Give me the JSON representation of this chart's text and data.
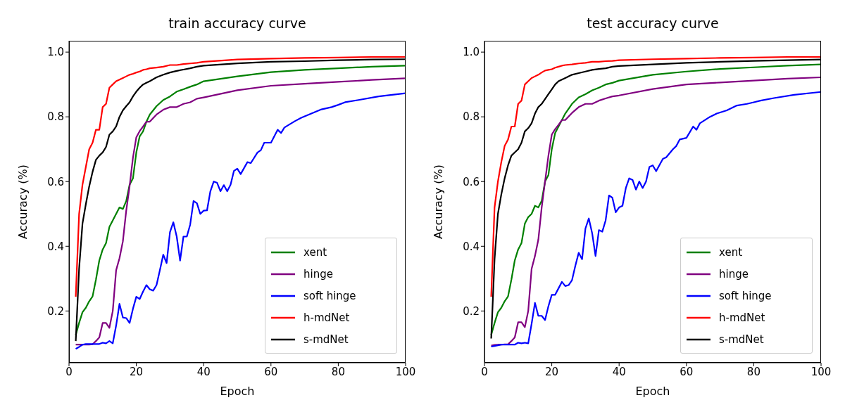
{
  "chart_data": [
    {
      "type": "line",
      "title": "train accuracy curve",
      "xlabel": "Epoch",
      "ylabel": "Accuracy (%)",
      "x": [
        2,
        3,
        4,
        5,
        6,
        7,
        8,
        9,
        10,
        11,
        12,
        13,
        14,
        15,
        16,
        17,
        18,
        19,
        20,
        21,
        22,
        23,
        24,
        26,
        28,
        30,
        32,
        34,
        36,
        38,
        40,
        50,
        60,
        70,
        80,
        90,
        100
      ],
      "series": [
        {
          "name": "xent",
          "color": "#008000",
          "values": [
            0.126,
            0.163,
            0.196,
            0.21,
            0.23,
            0.245,
            0.297,
            0.356,
            0.39,
            0.41,
            0.46,
            0.48,
            0.5,
            0.52,
            0.515,
            0.54,
            0.59,
            0.61,
            0.69,
            0.74,
            0.755,
            0.785,
            0.807,
            0.833,
            0.852,
            0.863,
            0.878,
            0.885,
            0.893,
            0.9,
            0.91,
            0.925,
            0.938,
            0.945,
            0.95,
            0.955,
            0.958
          ]
        },
        {
          "name": "hinge",
          "color": "#800080",
          "values": [
            0.096,
            0.096,
            0.096,
            0.096,
            0.096,
            0.097,
            0.107,
            0.118,
            0.163,
            0.163,
            0.148,
            0.2,
            0.326,
            0.363,
            0.415,
            0.51,
            0.585,
            0.674,
            0.737,
            0.756,
            0.77,
            0.785,
            0.785,
            0.807,
            0.822,
            0.83,
            0.83,
            0.84,
            0.845,
            0.856,
            0.86,
            0.882,
            0.896,
            0.902,
            0.908,
            0.914,
            0.919
          ]
        },
        {
          "name": "soft hinge",
          "color": "#0000ff",
          "x": [
            2,
            3,
            4,
            5,
            6,
            7,
            8,
            9,
            10,
            11,
            12,
            13,
            14,
            15,
            16,
            17,
            18,
            19,
            20,
            21,
            22,
            23,
            24,
            25,
            26,
            27,
            28,
            29,
            30,
            31,
            32,
            33,
            34,
            35,
            36,
            37,
            38,
            39,
            40,
            41,
            42,
            43,
            44,
            45,
            46,
            47,
            48,
            49,
            50,
            51,
            53,
            54,
            56,
            57,
            58,
            60,
            62,
            63,
            64,
            67,
            69,
            72,
            75,
            78,
            80,
            82,
            86,
            92,
            100
          ],
          "values": [
            0.083,
            0.089,
            0.096,
            0.098,
            0.098,
            0.098,
            0.098,
            0.098,
            0.102,
            0.1,
            0.107,
            0.1,
            0.155,
            0.222,
            0.18,
            0.178,
            0.163,
            0.207,
            0.244,
            0.237,
            0.26,
            0.28,
            0.267,
            0.263,
            0.28,
            0.326,
            0.374,
            0.348,
            0.444,
            0.474,
            0.43,
            0.356,
            0.43,
            0.43,
            0.467,
            0.54,
            0.533,
            0.5,
            0.51,
            0.511,
            0.57,
            0.6,
            0.596,
            0.57,
            0.589,
            0.57,
            0.59,
            0.633,
            0.64,
            0.623,
            0.66,
            0.657,
            0.69,
            0.697,
            0.72,
            0.72,
            0.76,
            0.75,
            0.767,
            0.786,
            0.797,
            0.81,
            0.823,
            0.83,
            0.837,
            0.845,
            0.852,
            0.863,
            0.873
          ]
        },
        {
          "name": "h-mdNet",
          "color": "#ff0000",
          "values": [
            0.244,
            0.5,
            0.59,
            0.645,
            0.7,
            0.72,
            0.76,
            0.76,
            0.83,
            0.84,
            0.89,
            0.9,
            0.91,
            0.915,
            0.92,
            0.925,
            0.93,
            0.933,
            0.937,
            0.94,
            0.945,
            0.947,
            0.95,
            0.952,
            0.955,
            0.96,
            0.96,
            0.963,
            0.965,
            0.967,
            0.97,
            0.977,
            0.98,
            0.982,
            0.983,
            0.985,
            0.985
          ]
        },
        {
          "name": "s-mdNet",
          "color": "#000000",
          "values": [
            0.107,
            0.33,
            0.47,
            0.53,
            0.585,
            0.63,
            0.667,
            0.68,
            0.69,
            0.707,
            0.745,
            0.755,
            0.77,
            0.8,
            0.82,
            0.833,
            0.845,
            0.863,
            0.878,
            0.89,
            0.9,
            0.905,
            0.91,
            0.922,
            0.93,
            0.937,
            0.942,
            0.946,
            0.95,
            0.955,
            0.958,
            0.965,
            0.97,
            0.972,
            0.975,
            0.977,
            0.978
          ]
        }
      ],
      "xlim": [
        0,
        100
      ],
      "xticks": [
        0,
        20,
        40,
        60,
        80,
        100
      ],
      "ylim": [
        0.04,
        1.035
      ],
      "yticks": [
        0.2,
        0.4,
        0.6,
        0.8,
        {
          "value": 1,
          "label": "1.0"
        }
      ],
      "legend": "bottom right",
      "marker": "none",
      "line_style": "solid"
    },
    {
      "type": "line",
      "title": "test accuracy curve",
      "xlabel": "Epoch",
      "ylabel": "Accuracy (%)",
      "x": [
        2,
        3,
        4,
        5,
        6,
        7,
        8,
        9,
        10,
        11,
        12,
        13,
        14,
        15,
        16,
        17,
        18,
        19,
        20,
        21,
        22,
        23,
        24,
        26,
        28,
        30,
        32,
        34,
        36,
        38,
        40,
        50,
        60,
        70,
        80,
        90,
        100
      ],
      "series": [
        {
          "name": "xent",
          "color": "#008000",
          "values": [
            0.126,
            0.163,
            0.196,
            0.21,
            0.23,
            0.245,
            0.297,
            0.356,
            0.39,
            0.41,
            0.47,
            0.49,
            0.5,
            0.525,
            0.52,
            0.54,
            0.6,
            0.62,
            0.7,
            0.75,
            0.77,
            0.79,
            0.81,
            0.84,
            0.86,
            0.87,
            0.882,
            0.89,
            0.9,
            0.905,
            0.912,
            0.93,
            0.94,
            0.948,
            0.953,
            0.958,
            0.962
          ]
        },
        {
          "name": "hinge",
          "color": "#800080",
          "values": [
            0.093,
            0.095,
            0.096,
            0.096,
            0.097,
            0.097,
            0.107,
            0.118,
            0.165,
            0.165,
            0.15,
            0.2,
            0.33,
            0.37,
            0.42,
            0.52,
            0.6,
            0.68,
            0.745,
            0.762,
            0.775,
            0.79,
            0.79,
            0.812,
            0.83,
            0.84,
            0.84,
            0.85,
            0.857,
            0.863,
            0.866,
            0.886,
            0.9,
            0.906,
            0.912,
            0.918,
            0.922
          ]
        },
        {
          "name": "soft hinge",
          "color": "#0000ff",
          "x": [
            2,
            3,
            4,
            5,
            6,
            7,
            8,
            9,
            10,
            11,
            12,
            13,
            14,
            15,
            16,
            17,
            18,
            19,
            20,
            21,
            22,
            23,
            24,
            25,
            26,
            27,
            28,
            29,
            30,
            31,
            32,
            33,
            34,
            35,
            36,
            37,
            38,
            39,
            40,
            41,
            42,
            43,
            44,
            45,
            46,
            47,
            48,
            49,
            50,
            51,
            53,
            54,
            56,
            57,
            58,
            60,
            62,
            63,
            64,
            67,
            69,
            72,
            75,
            78,
            80,
            82,
            86,
            92,
            100
          ],
          "values": [
            0.09,
            0.092,
            0.094,
            0.096,
            0.096,
            0.096,
            0.096,
            0.096,
            0.102,
            0.1,
            0.102,
            0.1,
            0.16,
            0.225,
            0.185,
            0.185,
            0.172,
            0.215,
            0.25,
            0.25,
            0.27,
            0.29,
            0.277,
            0.28,
            0.295,
            0.34,
            0.38,
            0.36,
            0.455,
            0.486,
            0.44,
            0.37,
            0.45,
            0.445,
            0.48,
            0.557,
            0.55,
            0.505,
            0.52,
            0.525,
            0.58,
            0.61,
            0.605,
            0.575,
            0.6,
            0.58,
            0.6,
            0.645,
            0.65,
            0.632,
            0.67,
            0.675,
            0.7,
            0.71,
            0.73,
            0.735,
            0.77,
            0.76,
            0.78,
            0.8,
            0.81,
            0.82,
            0.835,
            0.84,
            0.845,
            0.85,
            0.858,
            0.868,
            0.877
          ]
        },
        {
          "name": "h-mdNet",
          "color": "#ff0000",
          "values": [
            0.244,
            0.52,
            0.6,
            0.66,
            0.71,
            0.73,
            0.77,
            0.77,
            0.84,
            0.85,
            0.9,
            0.91,
            0.92,
            0.925,
            0.93,
            0.937,
            0.943,
            0.945,
            0.947,
            0.952,
            0.955,
            0.958,
            0.96,
            0.962,
            0.965,
            0.967,
            0.97,
            0.97,
            0.972,
            0.973,
            0.975,
            0.978,
            0.98,
            0.982,
            0.983,
            0.985,
            0.985
          ]
        },
        {
          "name": "s-mdNet",
          "color": "#000000",
          "values": [
            0.115,
            0.36,
            0.5,
            0.56,
            0.61,
            0.65,
            0.68,
            0.69,
            0.7,
            0.72,
            0.755,
            0.765,
            0.78,
            0.81,
            0.83,
            0.84,
            0.855,
            0.87,
            0.885,
            0.9,
            0.91,
            0.915,
            0.92,
            0.93,
            0.935,
            0.94,
            0.945,
            0.948,
            0.95,
            0.955,
            0.957,
            0.962,
            0.967,
            0.97,
            0.973,
            0.975,
            0.977
          ]
        }
      ],
      "xlim": [
        0,
        100
      ],
      "xticks": [
        0,
        20,
        40,
        60,
        80,
        100
      ],
      "ylim": [
        0.04,
        1.035
      ],
      "yticks": [
        0.2,
        0.4,
        0.6,
        0.8,
        {
          "value": 1,
          "label": "1.0"
        }
      ],
      "legend": "bottom right",
      "marker": "none",
      "line_style": "solid"
    }
  ]
}
